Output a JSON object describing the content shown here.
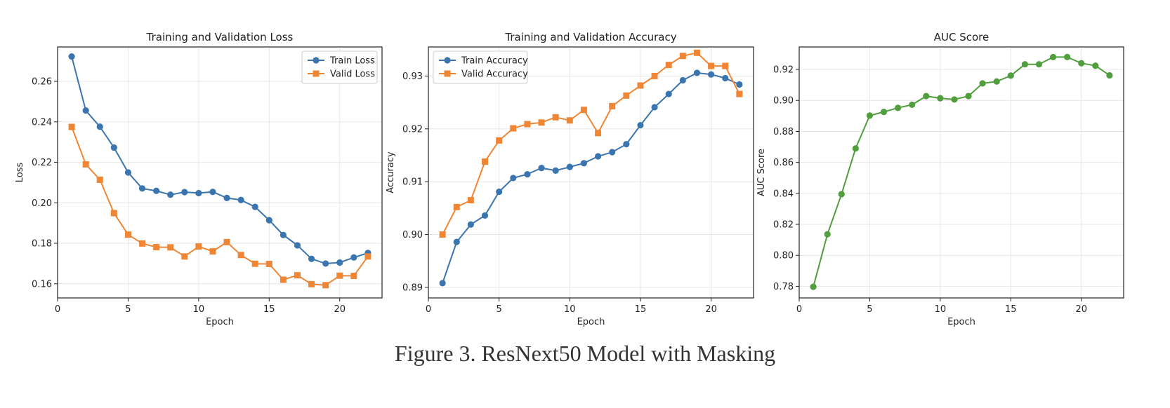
{
  "figure": {
    "caption": "Figure 3. ResNext50 Model with Masking"
  },
  "colors": {
    "train": "#3b75af",
    "valid": "#ef8636",
    "auc": "#519e3e",
    "grid": "#e6e6e6"
  },
  "chart_data": [
    {
      "type": "line",
      "title": "Training and Validation Loss",
      "xlabel": "Epoch",
      "ylabel": "Loss",
      "xlim": [
        0,
        23
      ],
      "ylim": [
        0.153,
        0.277
      ],
      "xticks": [
        0,
        5,
        10,
        15,
        20
      ],
      "yticks": [
        0.16,
        0.18,
        0.2,
        0.22,
        0.24,
        0.26
      ],
      "ytick_labels": [
        "0.16",
        "0.18",
        "0.20",
        "0.22",
        "0.24",
        "0.26"
      ],
      "grid": true,
      "legend": "upper right",
      "x": [
        1,
        2,
        3,
        4,
        5,
        6,
        7,
        8,
        9,
        10,
        11,
        12,
        13,
        14,
        15,
        16,
        17,
        18,
        19,
        20,
        21,
        22
      ],
      "series": [
        {
          "name": "Train Loss",
          "color": "#3b75af",
          "marker": "circle",
          "values": [
            0.2723,
            0.2456,
            0.2376,
            0.2273,
            0.215,
            0.2071,
            0.2059,
            0.204,
            0.2053,
            0.2048,
            0.2054,
            0.2024,
            0.2014,
            0.198,
            0.1914,
            0.1841,
            0.179,
            0.1723,
            0.17,
            0.1705,
            0.173,
            0.1752
          ]
        },
        {
          "name": "Valid Loss",
          "color": "#ef8636",
          "marker": "square",
          "values": [
            0.2375,
            0.219,
            0.2114,
            0.1949,
            0.1843,
            0.1799,
            0.1781,
            0.178,
            0.1735,
            0.1784,
            0.176,
            0.1806,
            0.1742,
            0.1699,
            0.1698,
            0.162,
            0.1642,
            0.1598,
            0.1593,
            0.164,
            0.1639,
            0.1735
          ]
        }
      ]
    },
    {
      "type": "line",
      "title": "Training and Validation Accuracy",
      "xlabel": "Epoch",
      "ylabel": "Accuracy",
      "xlim": [
        0,
        23
      ],
      "ylim": [
        0.888,
        0.9355
      ],
      "xticks": [
        0,
        5,
        10,
        15,
        20
      ],
      "yticks": [
        0.89,
        0.9,
        0.91,
        0.92,
        0.93
      ],
      "ytick_labels": [
        "0.89",
        "0.90",
        "0.91",
        "0.92",
        "0.93"
      ],
      "grid": true,
      "legend": "upper left",
      "x": [
        1,
        2,
        3,
        4,
        5,
        6,
        7,
        8,
        9,
        10,
        11,
        12,
        13,
        14,
        15,
        16,
        17,
        18,
        19,
        20,
        21,
        22
      ],
      "series": [
        {
          "name": "Train Accuracy",
          "color": "#3b75af",
          "marker": "circle",
          "values": [
            0.8908,
            0.8986,
            0.9019,
            0.9036,
            0.9081,
            0.9107,
            0.9114,
            0.9126,
            0.9121,
            0.9128,
            0.9135,
            0.9148,
            0.9156,
            0.9171,
            0.9207,
            0.9241,
            0.9266,
            0.9292,
            0.9306,
            0.9303,
            0.9296,
            0.9284
          ]
        },
        {
          "name": "Valid Accuracy",
          "color": "#ef8636",
          "marker": "square",
          "values": [
            0.9,
            0.9052,
            0.9065,
            0.9138,
            0.9178,
            0.9201,
            0.9209,
            0.9212,
            0.9222,
            0.9216,
            0.9236,
            0.9192,
            0.9243,
            0.9263,
            0.9282,
            0.93,
            0.9321,
            0.9338,
            0.9344,
            0.9319,
            0.9319,
            0.9266
          ]
        }
      ]
    },
    {
      "type": "line",
      "title": "AUC Score",
      "xlabel": "Epoch",
      "ylabel": "AUC Score",
      "xlim": [
        0,
        23
      ],
      "ylim": [
        0.7725,
        0.9345
      ],
      "xticks": [
        0,
        5,
        10,
        15,
        20
      ],
      "yticks": [
        0.78,
        0.8,
        0.82,
        0.84,
        0.86,
        0.88,
        0.9,
        0.92
      ],
      "ytick_labels": [
        "0.78",
        "0.80",
        "0.82",
        "0.84",
        "0.86",
        "0.88",
        "0.90",
        "0.92"
      ],
      "grid": true,
      "x": [
        1,
        2,
        3,
        4,
        5,
        6,
        7,
        8,
        9,
        10,
        11,
        12,
        13,
        14,
        15,
        16,
        17,
        18,
        19,
        20,
        21,
        22
      ],
      "series": [
        {
          "name": "",
          "color": "#519e3e",
          "marker": "circle",
          "values": [
            0.7797,
            0.8136,
            0.8395,
            0.869,
            0.8902,
            0.8926,
            0.8952,
            0.8972,
            0.9028,
            0.9014,
            0.9006,
            0.9028,
            0.911,
            0.9122,
            0.916,
            0.9233,
            0.9233,
            0.928,
            0.928,
            0.924,
            0.9224,
            0.9162
          ]
        }
      ]
    }
  ]
}
